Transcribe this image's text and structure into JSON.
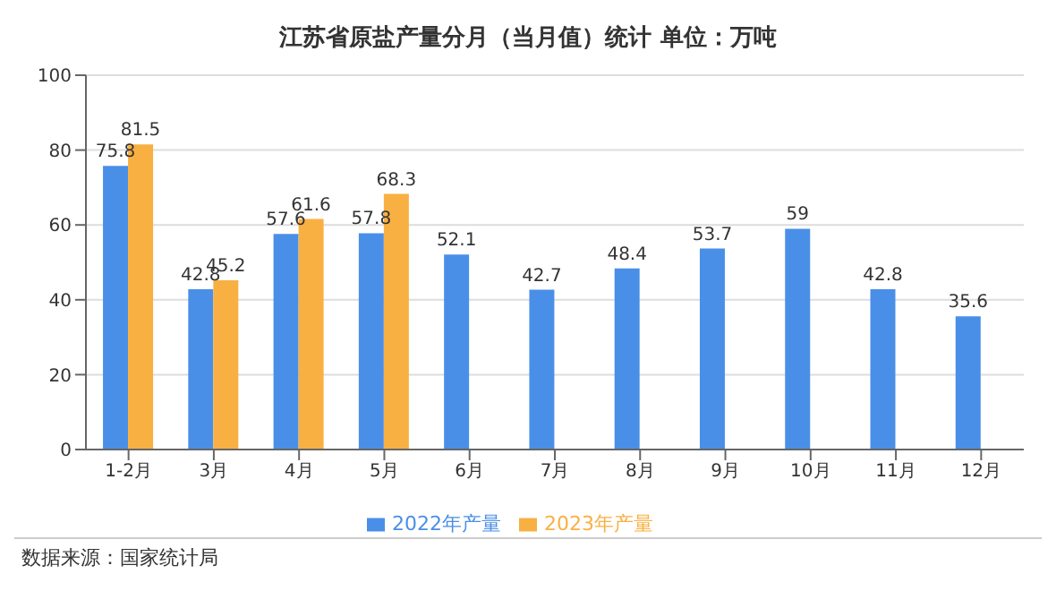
{
  "chart_data": {
    "type": "bar",
    "title": "江苏省原盐产量分月（当月值）统计  单位：万吨",
    "categories": [
      "1-2月",
      "3月",
      "4月",
      "5月",
      "6月",
      "7月",
      "8月",
      "9月",
      "10月",
      "11月",
      "12月"
    ],
    "series": [
      {
        "name": "2022年产量",
        "color": "#4a8fe7",
        "values": [
          75.8,
          42.8,
          57.6,
          57.8,
          52.1,
          42.7,
          48.4,
          53.7,
          59,
          42.8,
          35.6
        ]
      },
      {
        "name": "2023年产量",
        "color": "#f9b042",
        "values": [
          81.5,
          45.2,
          61.6,
          68.3,
          null,
          null,
          null,
          null,
          null,
          null,
          null
        ]
      }
    ],
    "ylim": [
      0,
      100
    ],
    "yticks": [
      0,
      20,
      40,
      60,
      80,
      100
    ],
    "grid": "y",
    "legend": "bottom",
    "data_labels": true,
    "annotations": [
      "数据来源：国家统计局"
    ]
  }
}
